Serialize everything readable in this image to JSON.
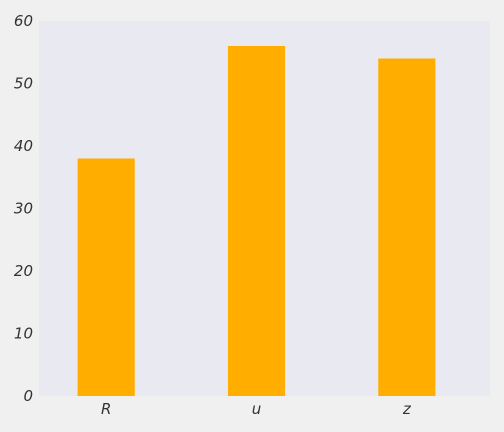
{
  "chart_data": {
    "type": "bar",
    "title": "",
    "xlabel": "",
    "ylabel": "",
    "categories": [
      "R",
      "u",
      "z"
    ],
    "values": [
      38,
      56,
      54
    ],
    "ylim": [
      0,
      60
    ],
    "yticks": [
      0,
      10,
      20,
      30,
      40,
      50,
      60
    ],
    "grid": false,
    "legend": "none",
    "colors": {
      "bar": "#ffae00",
      "plot_background": "#e9e9f1",
      "figure_background": "#f0f0f0",
      "text": "#333333"
    }
  }
}
